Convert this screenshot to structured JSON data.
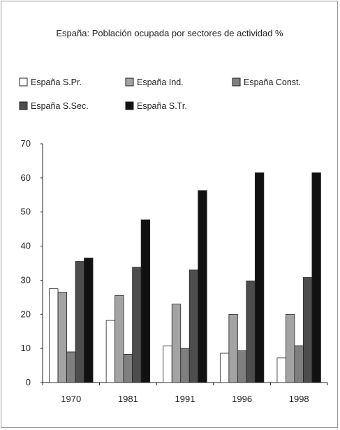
{
  "chart_data": {
    "type": "bar",
    "title": "España: Población ocupada por sectores de actividad %",
    "xlabel": "",
    "ylabel": "",
    "ylim": [
      0,
      70
    ],
    "yticks": [
      "0",
      "10",
      "20",
      "30",
      "40",
      "50",
      "60",
      "70"
    ],
    "grid": false,
    "legend_position": "top",
    "categories": [
      "1970",
      "1981",
      "1991",
      "1996",
      "1998"
    ],
    "series": [
      {
        "name": "España S.Pr.",
        "color": "#ffffff",
        "values": [
          27.5,
          18.2,
          10.7,
          8.6,
          7.2
        ]
      },
      {
        "name": "España Ind.",
        "color": "#a3a3a3",
        "values": [
          26.5,
          25.5,
          23.0,
          20.0,
          20.0
        ]
      },
      {
        "name": "España Const.",
        "color": "#7f7f7f",
        "values": [
          9.0,
          8.3,
          10.0,
          9.3,
          10.8
        ]
      },
      {
        "name": "España S.Sec.",
        "color": "#4d4d4d",
        "values": [
          35.5,
          33.8,
          33.0,
          29.8,
          30.8
        ]
      },
      {
        "name": "España S.Tr.",
        "color": "#111111",
        "values": [
          36.5,
          47.7,
          56.3,
          61.5,
          61.5
        ]
      }
    ]
  }
}
